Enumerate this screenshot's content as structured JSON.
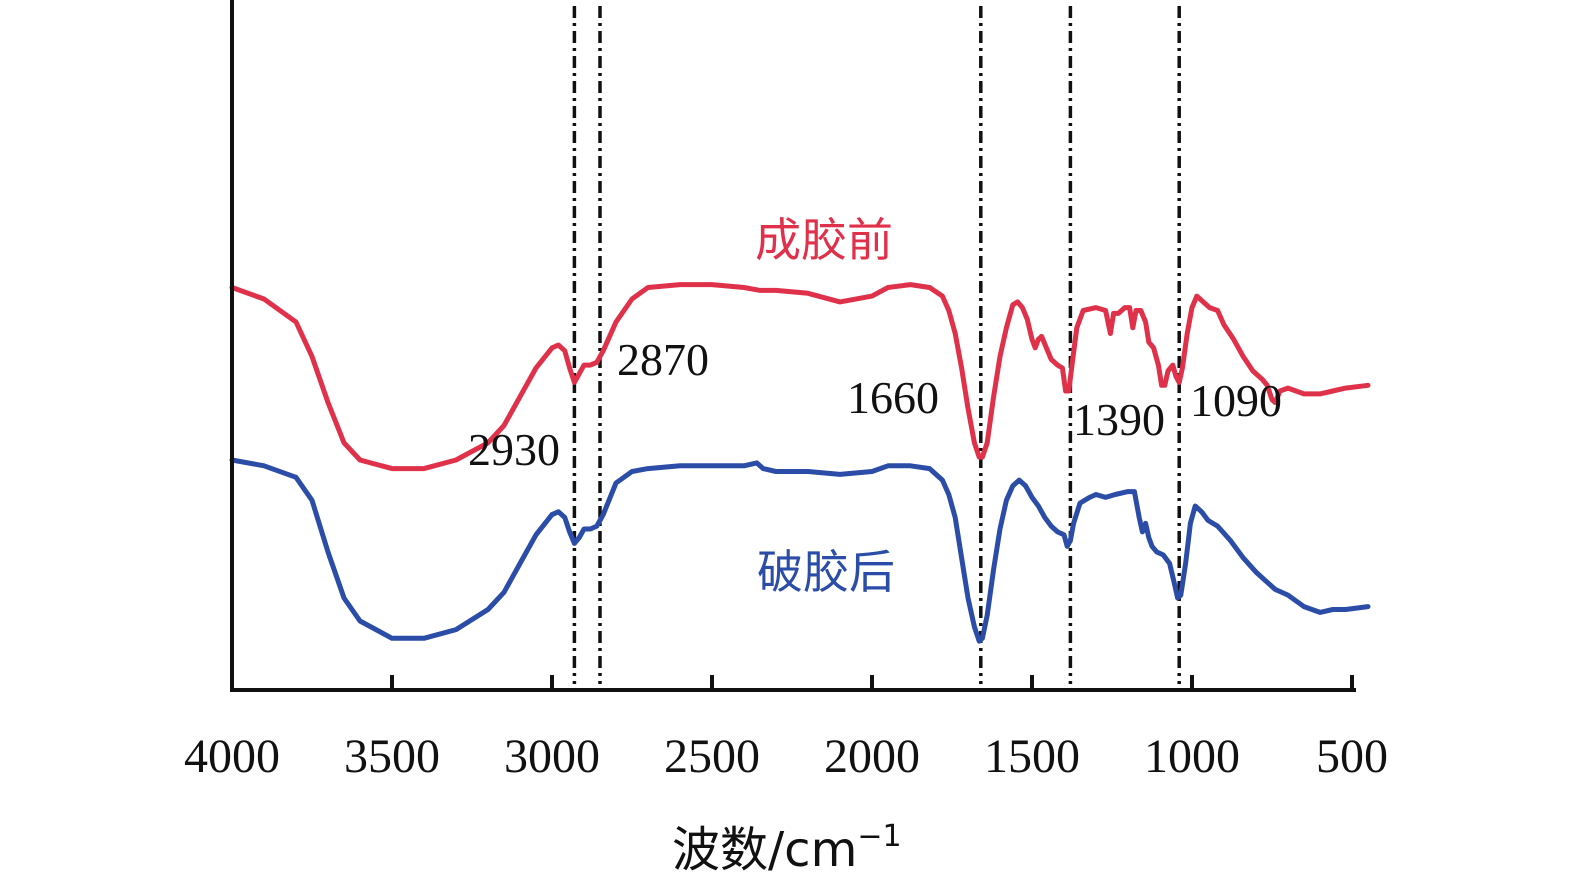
{
  "chart_data": {
    "type": "line",
    "title": "",
    "xlabel": "波数/cm",
    "xlabel_superscript": "−1",
    "ylabel": "",
    "xlim": [
      4000,
      500
    ],
    "x_reversed": true,
    "x_ticks": [
      4000,
      3500,
      3000,
      2500,
      2000,
      1500,
      1000,
      500
    ],
    "x_tick_labels": [
      "4000",
      "3500",
      "3000",
      "2500",
      "2000",
      "1500",
      "1000",
      "500"
    ],
    "y_ticks_shown": false,
    "grid": false,
    "ref_lines": [
      2930,
      2850,
      1660,
      1380,
      1040
    ],
    "peak_labels": [
      {
        "text": "2930",
        "x": 2930
      },
      {
        "text": "2870",
        "x": 2850
      },
      {
        "text": "1660",
        "x": 1660
      },
      {
        "text": "1390",
        "x": 1380
      },
      {
        "text": "1090",
        "x": 1040
      }
    ],
    "series": [
      {
        "name": "成胶前",
        "color": "#e0314a",
        "points": [
          [
            4000,
            0.7
          ],
          [
            3900,
            0.68
          ],
          [
            3800,
            0.64
          ],
          [
            3750,
            0.58
          ],
          [
            3700,
            0.5
          ],
          [
            3650,
            0.43
          ],
          [
            3600,
            0.4
          ],
          [
            3500,
            0.385
          ],
          [
            3400,
            0.385
          ],
          [
            3300,
            0.4
          ],
          [
            3200,
            0.43
          ],
          [
            3150,
            0.46
          ],
          [
            3100,
            0.51
          ],
          [
            3050,
            0.56
          ],
          [
            3000,
            0.595
          ],
          [
            2980,
            0.6
          ],
          [
            2960,
            0.59
          ],
          [
            2945,
            0.56
          ],
          [
            2930,
            0.535
          ],
          [
            2915,
            0.55
          ],
          [
            2900,
            0.565
          ],
          [
            2880,
            0.565
          ],
          [
            2860,
            0.57
          ],
          [
            2840,
            0.59
          ],
          [
            2800,
            0.64
          ],
          [
            2750,
            0.68
          ],
          [
            2700,
            0.7
          ],
          [
            2600,
            0.705
          ],
          [
            2500,
            0.705
          ],
          [
            2400,
            0.7
          ],
          [
            2350,
            0.695
          ],
          [
            2300,
            0.695
          ],
          [
            2200,
            0.69
          ],
          [
            2100,
            0.675
          ],
          [
            2000,
            0.685
          ],
          [
            1950,
            0.7
          ],
          [
            1880,
            0.705
          ],
          [
            1820,
            0.7
          ],
          [
            1780,
            0.685
          ],
          [
            1760,
            0.66
          ],
          [
            1740,
            0.62
          ],
          [
            1720,
            0.56
          ],
          [
            1700,
            0.49
          ],
          [
            1680,
            0.43
          ],
          [
            1665,
            0.405
          ],
          [
            1655,
            0.405
          ],
          [
            1640,
            0.43
          ],
          [
            1620,
            0.51
          ],
          [
            1600,
            0.58
          ],
          [
            1580,
            0.63
          ],
          [
            1560,
            0.67
          ],
          [
            1545,
            0.675
          ],
          [
            1530,
            0.665
          ],
          [
            1515,
            0.645
          ],
          [
            1500,
            0.61
          ],
          [
            1490,
            0.595
          ],
          [
            1480,
            0.61
          ],
          [
            1470,
            0.615
          ],
          [
            1455,
            0.595
          ],
          [
            1440,
            0.575
          ],
          [
            1420,
            0.565
          ],
          [
            1405,
            0.56
          ],
          [
            1395,
            0.52
          ],
          [
            1385,
            0.52
          ],
          [
            1375,
            0.565
          ],
          [
            1360,
            0.63
          ],
          [
            1340,
            0.66
          ],
          [
            1300,
            0.665
          ],
          [
            1270,
            0.66
          ],
          [
            1255,
            0.62
          ],
          [
            1245,
            0.655
          ],
          [
            1230,
            0.655
          ],
          [
            1210,
            0.665
          ],
          [
            1195,
            0.665
          ],
          [
            1185,
            0.63
          ],
          [
            1175,
            0.66
          ],
          [
            1160,
            0.66
          ],
          [
            1145,
            0.64
          ],
          [
            1135,
            0.605
          ],
          [
            1120,
            0.595
          ],
          [
            1105,
            0.565
          ],
          [
            1095,
            0.53
          ],
          [
            1085,
            0.53
          ],
          [
            1075,
            0.555
          ],
          [
            1060,
            0.565
          ],
          [
            1050,
            0.545
          ],
          [
            1040,
            0.535
          ],
          [
            1030,
            0.56
          ],
          [
            1015,
            0.62
          ],
          [
            1000,
            0.665
          ],
          [
            985,
            0.685
          ],
          [
            965,
            0.675
          ],
          [
            945,
            0.665
          ],
          [
            920,
            0.66
          ],
          [
            900,
            0.635
          ],
          [
            870,
            0.61
          ],
          [
            840,
            0.58
          ],
          [
            810,
            0.555
          ],
          [
            780,
            0.54
          ],
          [
            765,
            0.53
          ],
          [
            750,
            0.505
          ],
          [
            740,
            0.5
          ],
          [
            725,
            0.52
          ],
          [
            700,
            0.525
          ],
          [
            650,
            0.515
          ],
          [
            600,
            0.515
          ],
          [
            560,
            0.52
          ],
          [
            520,
            0.525
          ],
          [
            450,
            0.53
          ]
        ]
      },
      {
        "name": "破胶后",
        "color": "#2b4da8",
        "points": [
          [
            4000,
            0.4
          ],
          [
            3900,
            0.39
          ],
          [
            3800,
            0.37
          ],
          [
            3750,
            0.33
          ],
          [
            3700,
            0.24
          ],
          [
            3650,
            0.16
          ],
          [
            3600,
            0.12
          ],
          [
            3500,
            0.09
          ],
          [
            3400,
            0.09
          ],
          [
            3300,
            0.105
          ],
          [
            3200,
            0.14
          ],
          [
            3150,
            0.17
          ],
          [
            3100,
            0.22
          ],
          [
            3050,
            0.27
          ],
          [
            3000,
            0.305
          ],
          [
            2980,
            0.31
          ],
          [
            2960,
            0.3
          ],
          [
            2945,
            0.275
          ],
          [
            2930,
            0.255
          ],
          [
            2915,
            0.265
          ],
          [
            2900,
            0.28
          ],
          [
            2880,
            0.28
          ],
          [
            2860,
            0.285
          ],
          [
            2840,
            0.305
          ],
          [
            2800,
            0.36
          ],
          [
            2750,
            0.38
          ],
          [
            2700,
            0.385
          ],
          [
            2600,
            0.39
          ],
          [
            2500,
            0.39
          ],
          [
            2400,
            0.39
          ],
          [
            2360,
            0.395
          ],
          [
            2340,
            0.385
          ],
          [
            2300,
            0.38
          ],
          [
            2200,
            0.38
          ],
          [
            2100,
            0.375
          ],
          [
            2000,
            0.38
          ],
          [
            1950,
            0.39
          ],
          [
            1880,
            0.39
          ],
          [
            1820,
            0.385
          ],
          [
            1780,
            0.365
          ],
          [
            1760,
            0.34
          ],
          [
            1740,
            0.3
          ],
          [
            1720,
            0.23
          ],
          [
            1700,
            0.16
          ],
          [
            1680,
            0.11
          ],
          [
            1665,
            0.085
          ],
          [
            1655,
            0.09
          ],
          [
            1640,
            0.13
          ],
          [
            1620,
            0.21
          ],
          [
            1600,
            0.28
          ],
          [
            1580,
            0.33
          ],
          [
            1560,
            0.355
          ],
          [
            1540,
            0.365
          ],
          [
            1520,
            0.355
          ],
          [
            1500,
            0.335
          ],
          [
            1480,
            0.32
          ],
          [
            1460,
            0.3
          ],
          [
            1440,
            0.285
          ],
          [
            1420,
            0.275
          ],
          [
            1400,
            0.27
          ],
          [
            1390,
            0.25
          ],
          [
            1380,
            0.26
          ],
          [
            1370,
            0.29
          ],
          [
            1350,
            0.325
          ],
          [
            1320,
            0.335
          ],
          [
            1300,
            0.34
          ],
          [
            1270,
            0.335
          ],
          [
            1240,
            0.34
          ],
          [
            1200,
            0.345
          ],
          [
            1180,
            0.345
          ],
          [
            1165,
            0.3
          ],
          [
            1155,
            0.275
          ],
          [
            1145,
            0.29
          ],
          [
            1135,
            0.265
          ],
          [
            1125,
            0.25
          ],
          [
            1110,
            0.24
          ],
          [
            1090,
            0.235
          ],
          [
            1070,
            0.22
          ],
          [
            1055,
            0.185
          ],
          [
            1045,
            0.16
          ],
          [
            1035,
            0.165
          ],
          [
            1020,
            0.22
          ],
          [
            1005,
            0.29
          ],
          [
            990,
            0.32
          ],
          [
            970,
            0.31
          ],
          [
            950,
            0.295
          ],
          [
            920,
            0.285
          ],
          [
            880,
            0.26
          ],
          [
            840,
            0.23
          ],
          [
            800,
            0.205
          ],
          [
            770,
            0.19
          ],
          [
            740,
            0.175
          ],
          [
            700,
            0.165
          ],
          [
            650,
            0.145
          ],
          [
            600,
            0.135
          ],
          [
            560,
            0.14
          ],
          [
            520,
            0.14
          ],
          [
            450,
            0.145
          ]
        ]
      }
    ]
  }
}
